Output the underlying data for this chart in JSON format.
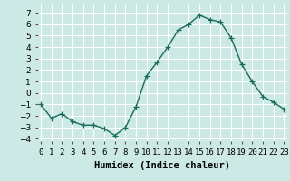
{
  "x": [
    0,
    1,
    2,
    3,
    4,
    5,
    6,
    7,
    8,
    9,
    10,
    11,
    12,
    13,
    14,
    15,
    16,
    17,
    18,
    19,
    20,
    21,
    22,
    23
  ],
  "y": [
    -1,
    -2.2,
    -1.8,
    -2.5,
    -2.8,
    -2.8,
    -3.1,
    -3.7,
    -3.0,
    -1.2,
    1.5,
    2.7,
    4.0,
    5.5,
    6.0,
    6.8,
    6.4,
    6.2,
    4.8,
    2.5,
    1.0,
    -0.3,
    -0.8,
    -1.4
  ],
  "line_color": "#1a6b5a",
  "marker": "+",
  "marker_size": 4,
  "linewidth": 1.0,
  "xlabel": "Humidex (Indice chaleur)",
  "ylim": [
    -4.2,
    7.8
  ],
  "yticks": [
    -4,
    -3,
    -2,
    -1,
    0,
    1,
    2,
    3,
    4,
    5,
    6,
    7
  ],
  "xlim": [
    -0.3,
    23.3
  ],
  "xticks": [
    0,
    1,
    2,
    3,
    4,
    5,
    6,
    7,
    8,
    9,
    10,
    11,
    12,
    13,
    14,
    15,
    16,
    17,
    18,
    19,
    20,
    21,
    22,
    23
  ],
  "xtick_labels": [
    "0",
    "1",
    "2",
    "3",
    "4",
    "5",
    "6",
    "7",
    "8",
    "9",
    "10",
    "11",
    "12",
    "13",
    "14",
    "15",
    "16",
    "17",
    "18",
    "19",
    "20",
    "21",
    "22",
    "23"
  ],
  "bg_color": "#cce9e5",
  "grid_color": "#ffffff",
  "xlabel_fontsize": 7.5,
  "tick_fontsize": 6.5
}
